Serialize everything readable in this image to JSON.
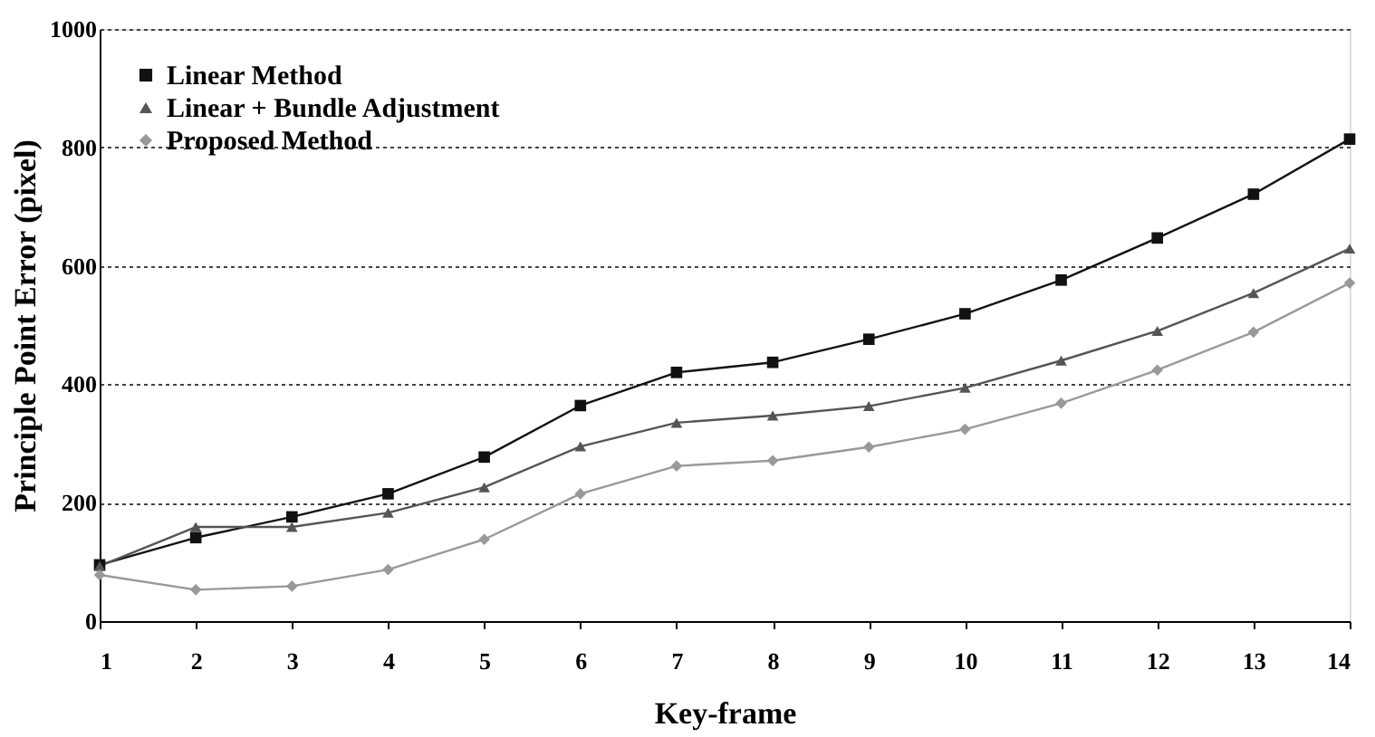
{
  "chart_data": {
    "type": "line",
    "xlabel": "Key-frame",
    "ylabel": "Principle Point Error (pixel)",
    "x": [
      1,
      2,
      3,
      4,
      5,
      6,
      7,
      8,
      9,
      10,
      11,
      12,
      13,
      14
    ],
    "xlim": [
      1,
      14
    ],
    "xticks": [
      1,
      2,
      3,
      4,
      5,
      6,
      7,
      8,
      9,
      10,
      11,
      12,
      13,
      14
    ],
    "ylim": [
      0,
      1000
    ],
    "yticks": [
      0,
      200,
      400,
      600,
      800,
      1000
    ],
    "grid": "y",
    "legend": "top left",
    "line_style": "solid",
    "series": [
      {
        "name": "Linear Method",
        "color": "#111111",
        "marker": "square",
        "values": [
          95,
          141,
          176,
          215,
          277,
          364,
          420,
          437,
          476,
          519,
          576,
          647,
          721,
          814
        ]
      },
      {
        "name": "Linear + Bundle Adjustment",
        "color": "#555555",
        "marker": "triangle",
        "values": [
          93,
          159,
          159,
          183,
          226,
          295,
          335,
          347,
          363,
          394,
          440,
          490,
          554,
          629
        ]
      },
      {
        "name": "Proposed Method",
        "color": "#999999",
        "marker": "diamond",
        "values": [
          78,
          53,
          59,
          87,
          138,
          215,
          262,
          271,
          294,
          324,
          368,
          424,
          488,
          571
        ]
      }
    ]
  }
}
